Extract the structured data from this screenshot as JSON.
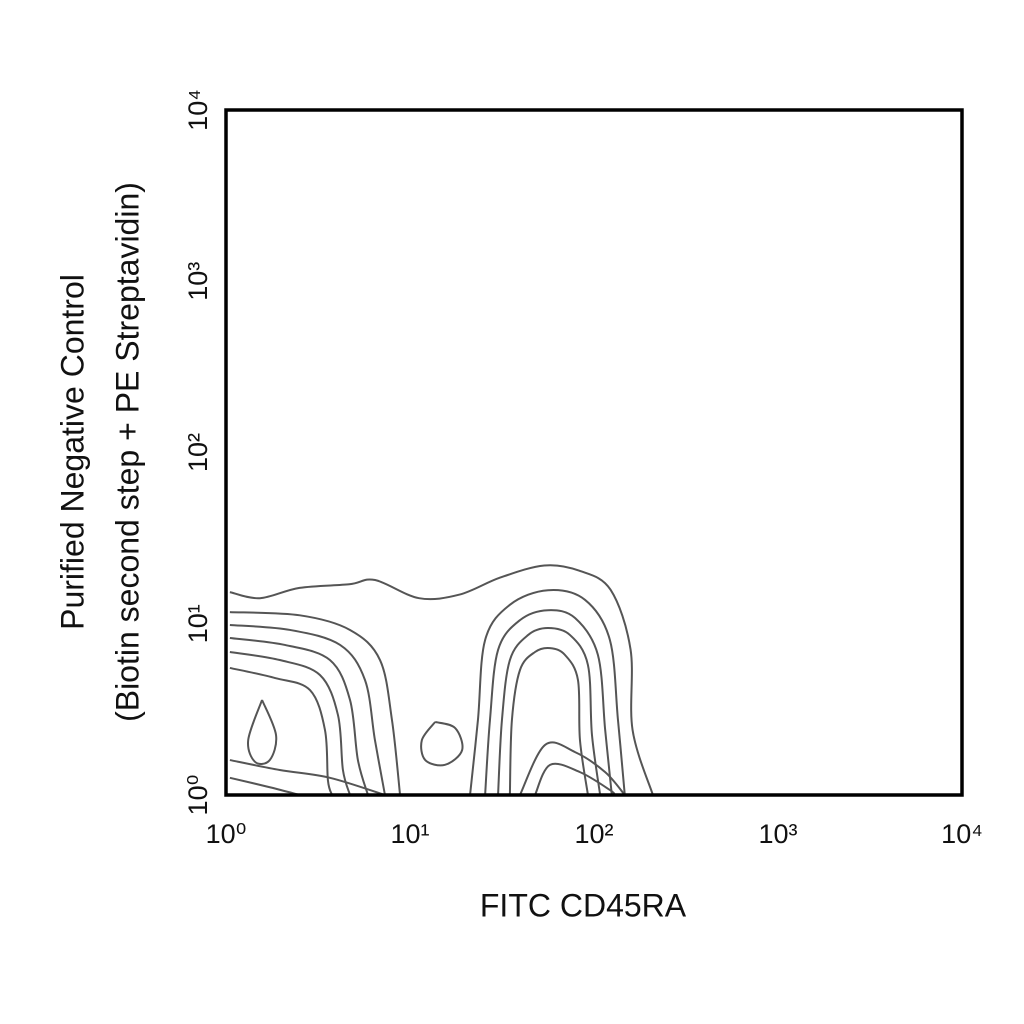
{
  "chart_data": {
    "type": "contour",
    "xlabel": "FITC CD45RA",
    "ylabel": [
      "Purified Negative Control",
      "(Biotin second step + PE Streptavidin)"
    ],
    "xscale": "log",
    "yscale": "log",
    "xlim": [
      1,
      10000
    ],
    "ylim": [
      1,
      10000
    ],
    "xticks": [
      {
        "value": 1,
        "label": "10⁰"
      },
      {
        "value": 10,
        "label": "10¹"
      },
      {
        "value": 100,
        "label": "10²"
      },
      {
        "value": 1000,
        "label": "10³"
      },
      {
        "value": 10000,
        "label": "10⁴"
      }
    ],
    "yticks": [
      {
        "value": 1,
        "label": "10⁰"
      },
      {
        "value": 10,
        "label": "10¹"
      },
      {
        "value": 100,
        "label": "10²"
      },
      {
        "value": 1000,
        "label": "10³"
      },
      {
        "value": 10000,
        "label": "10⁴"
      }
    ],
    "grid": false,
    "color": "#555555",
    "series": [
      {
        "x": [
          1.05,
          1.53,
          2.51,
          4.68,
          6.46,
          11.2,
          18.6,
          30.9,
          53.7,
          83.2,
          123,
          158,
          162,
          209
        ],
        "y": [
          15.3,
          14.1,
          16.2,
          17.0,
          18.0,
          14.1,
          14.8,
          18.6,
          21.9,
          20.4,
          15.8,
          7.08,
          2.4,
          1
        ]
      },
      {
        "x": [
          1.05,
          2.52,
          4.72,
          6.87,
          7.98,
          8.83
        ],
        "y": [
          11.7,
          11.2,
          9.2,
          6.14,
          2.74,
          1
        ]
      },
      {
        "x": [
          1.05,
          2.23,
          4.17,
          5.69,
          6.45,
          7.31
        ],
        "y": [
          9.84,
          9.2,
          7.52,
          4.7,
          2.09,
          1
        ]
      },
      {
        "x": [
          1.05,
          2.09,
          3.67,
          4.72,
          5.21,
          5.91
        ],
        "y": [
          8.26,
          7.52,
          6.14,
          3.59,
          1.6,
          1
        ]
      },
      {
        "x": [
          1.05,
          1.96,
          3.24,
          4.06,
          4.32,
          4.72
        ],
        "y": [
          6.84,
          6.14,
          5.02,
          2.93,
          1.4,
          1
        ]
      },
      {
        "x": [
          1.05,
          1.85,
          2.86,
          3.45,
          3.58,
          3.77
        ],
        "y": [
          5.52,
          4.82,
          4.1,
          2.4,
          1.22,
          1
        ]
      },
      {
        "x": [
          21.2,
          23.4,
          25.6,
          34.9,
          56.2,
          89.3,
          122,
          135,
          147
        ],
        "y": [
          1,
          2.74,
          8.04,
          12.9,
          15.7,
          13.8,
          8.04,
          2.74,
          1
        ]
      },
      {
        "x": [
          25.6,
          27.2,
          30.1,
          39.6,
          56.2,
          78.9,
          105,
          115,
          125
        ],
        "y": [
          1,
          2.74,
          7.03,
          10.5,
          12.0,
          10.8,
          6.58,
          2.4,
          1
        ]
      },
      {
        "x": [
          30.1,
          31.6,
          34.9,
          43.8,
          56.2,
          74.1,
          92.7,
          97.5,
          108
        ],
        "y": [
          1,
          2.74,
          6.14,
          8.59,
          9.44,
          8.59,
          5.74,
          2.24,
          1
        ]
      },
      {
        "x": [
          34.9,
          35.8,
          39.6,
          47.8,
          57.7,
          69.5,
          81.8,
          83.9,
          92.7
        ],
        "y": [
          1,
          2.74,
          5.37,
          6.84,
          7.21,
          6.58,
          4.7,
          2.09,
          1
        ]
      },
      {
        "x": [
          1.05,
          1.96,
          3.67,
          7.31
        ],
        "y": [
          1.6,
          1.4,
          1.26,
          1
        ]
      },
      {
        "x": [
          1.05,
          1.73,
          2.52
        ],
        "y": [
          1.26,
          1.11,
          1
        ]
      },
      {
        "x": [
          39.6,
          54.2,
          78.9,
          115,
          147
        ],
        "y": [
          1,
          1.96,
          1.78,
          1.36,
          1
        ]
      },
      {
        "x": [
          47.8,
          57.7,
          83.9,
          122,
          130
        ],
        "y": [
          1,
          1.5,
          1.36,
          1.07,
          1
        ]
      },
      {
        "x": [
          1.57,
          1.87,
          1.73,
          1.44,
          1.32,
          1.57
        ],
        "y": [
          3.59,
          2.24,
          1.6,
          1.56,
          2.09,
          3.59
        ]
      },
      {
        "x": [
          13.7,
          17.6,
          19.2,
          15.5,
          12.1,
          11.6,
          13.7
        ],
        "y": [
          2.67,
          2.46,
          1.83,
          1.5,
          1.6,
          2.09,
          2.67
        ]
      }
    ]
  }
}
